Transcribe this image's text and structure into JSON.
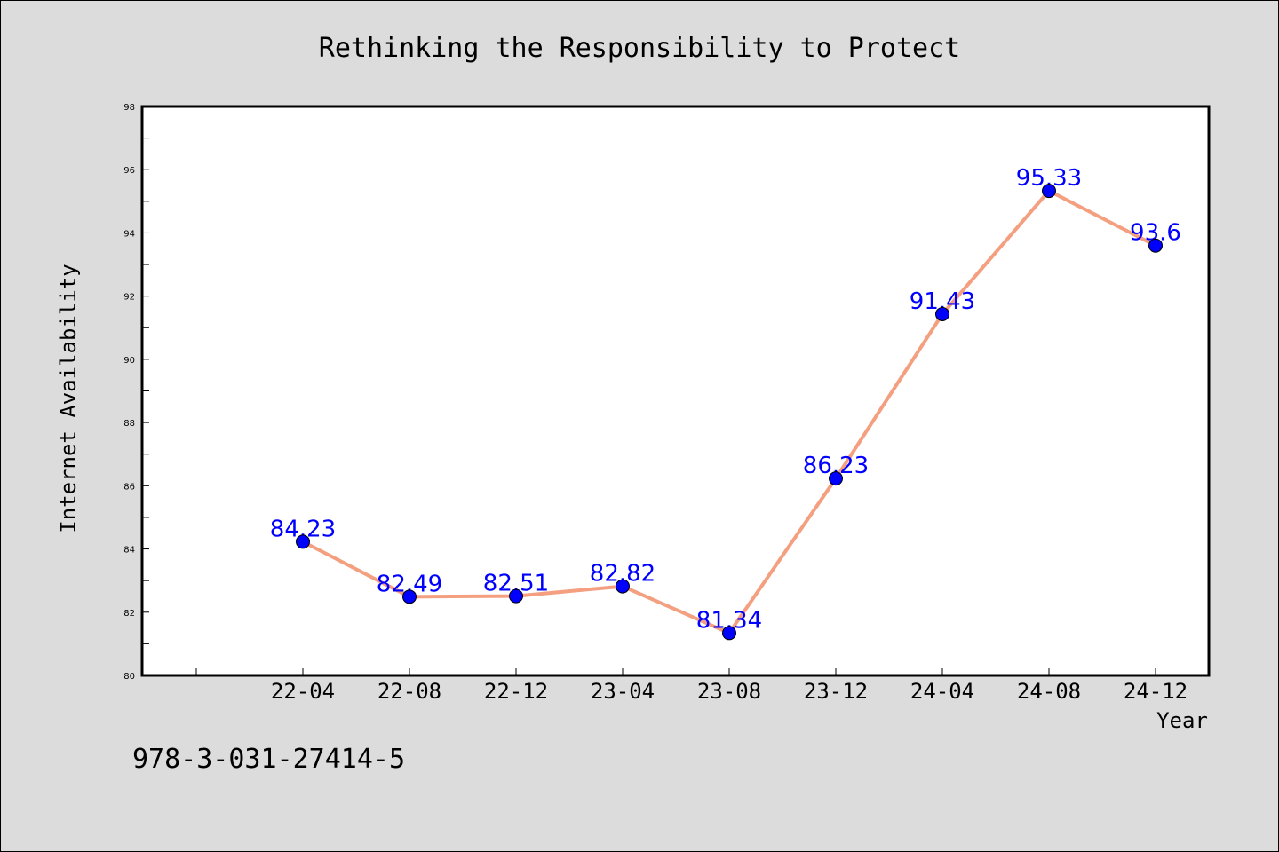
{
  "colors": {
    "background": "#dcdcdc",
    "plot_background": "#ffffff",
    "line": "#f4a080",
    "marker": "#0000ff",
    "data_label": "#0000ff",
    "axis": "#000000"
  },
  "footer": {
    "code": "978-3-031-27414-5"
  },
  "chart_data": {
    "type": "line",
    "title": "Rethinking the Responsibility to Protect",
    "xlabel": "Year",
    "ylabel": "Internet Availability",
    "categories": [
      "22-04",
      "22-08",
      "22-12",
      "23-04",
      "23-08",
      "23-12",
      "24-04",
      "24-08",
      "24-12"
    ],
    "series": [
      {
        "values": [
          84.23,
          82.49,
          82.51,
          82.82,
          81.34,
          86.23,
          91.43,
          95.33,
          93.6
        ]
      }
    ],
    "data_labels": [
      "84.23",
      "82.49",
      "82.51",
      "82.82",
      "81.34",
      "86.23",
      "91.43",
      "95.33",
      "93.6"
    ],
    "ylim": [
      80,
      98
    ],
    "y_ticks": [
      "80",
      "82",
      "84",
      "86",
      "88",
      "90",
      "92",
      "94",
      "96",
      "98"
    ],
    "grid": false,
    "legend": "none"
  }
}
